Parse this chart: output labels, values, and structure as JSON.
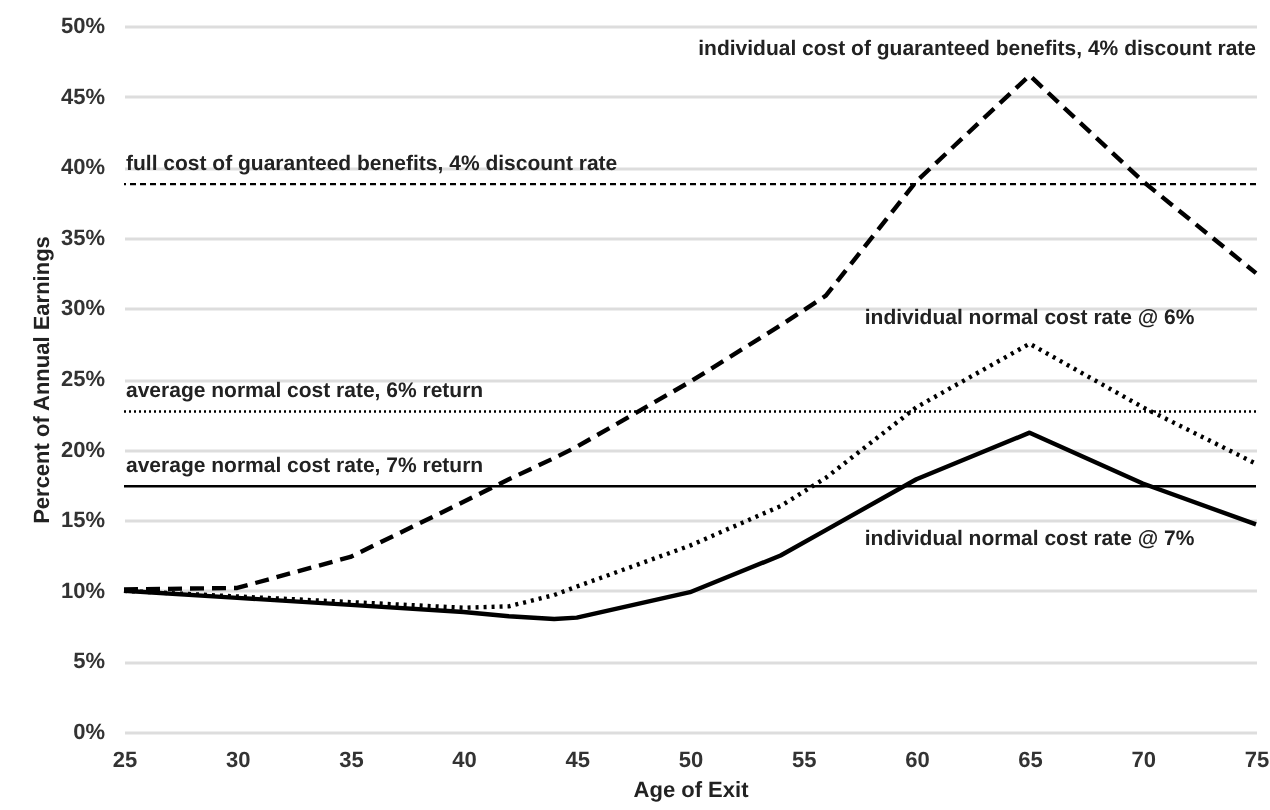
{
  "chart_data": {
    "type": "line",
    "xlabel": "Age of Exit",
    "ylabel": "Percent of Annual Earnings",
    "x": [
      25,
      30,
      35,
      40,
      42,
      44,
      45,
      50,
      54,
      56,
      60,
      65,
      70,
      75
    ],
    "series": [
      {
        "name": "individual cost of guaranteed benefits, 4% discount rate",
        "color": "#000000",
        "line_style": "dashed",
        "values": [
          10.1,
          10.2,
          12.4,
          16.3,
          17.9,
          19.4,
          20.2,
          24.8,
          28.8,
          30.9,
          39,
          46.5,
          39,
          32.5
        ]
      },
      {
        "name": "individual normal cost rate @ 6%",
        "color": "#000000",
        "line_style": "dotted",
        "values": [
          10,
          9.6,
          9.2,
          8.8,
          8.9,
          9.7,
          10.3,
          13.2,
          16,
          18,
          23,
          27.5,
          23,
          19
        ]
      },
      {
        "name": "individual normal cost rate @ 7%",
        "color": "#000000",
        "line_style": "solid",
        "values": [
          10,
          9.5,
          9,
          8.5,
          8.2,
          8,
          8.1,
          9.9,
          12.5,
          14.3,
          17.9,
          21.2,
          17.6,
          14.7
        ]
      }
    ],
    "ref_lines": [
      {
        "axis": "y",
        "value": 38.8,
        "label": "full cost of guaranteed benefits, 4% discount rate",
        "color": "#000000",
        "line_style": "dashed"
      },
      {
        "axis": "y",
        "value": 22.7,
        "label": "average normal cost rate, 6% return",
        "color": "#000000",
        "line_style": "dotted"
      },
      {
        "axis": "y",
        "value": 17.4,
        "label": "average normal cost rate, 7% return",
        "color": "#000000",
        "line_style": "solid"
      }
    ],
    "xlim": [
      25,
      75
    ],
    "xticks": [
      25,
      30,
      35,
      40,
      45,
      50,
      55,
      60,
      65,
      70,
      75
    ],
    "ylim": [
      0,
      50
    ],
    "yticks": [
      {
        "value": 0,
        "label": "0%"
      },
      {
        "value": 5,
        "label": "5%"
      },
      {
        "value": 10,
        "label": "10%"
      },
      {
        "value": 15,
        "label": "15%"
      },
      {
        "value": 20,
        "label": "20%"
      },
      {
        "value": 25,
        "label": "25%"
      },
      {
        "value": 30,
        "label": "30%"
      },
      {
        "value": 35,
        "label": "35%"
      },
      {
        "value": 40,
        "label": "40%"
      },
      {
        "value": 45,
        "label": "45%"
      },
      {
        "value": 50,
        "label": "50%"
      }
    ],
    "grid": "y"
  }
}
